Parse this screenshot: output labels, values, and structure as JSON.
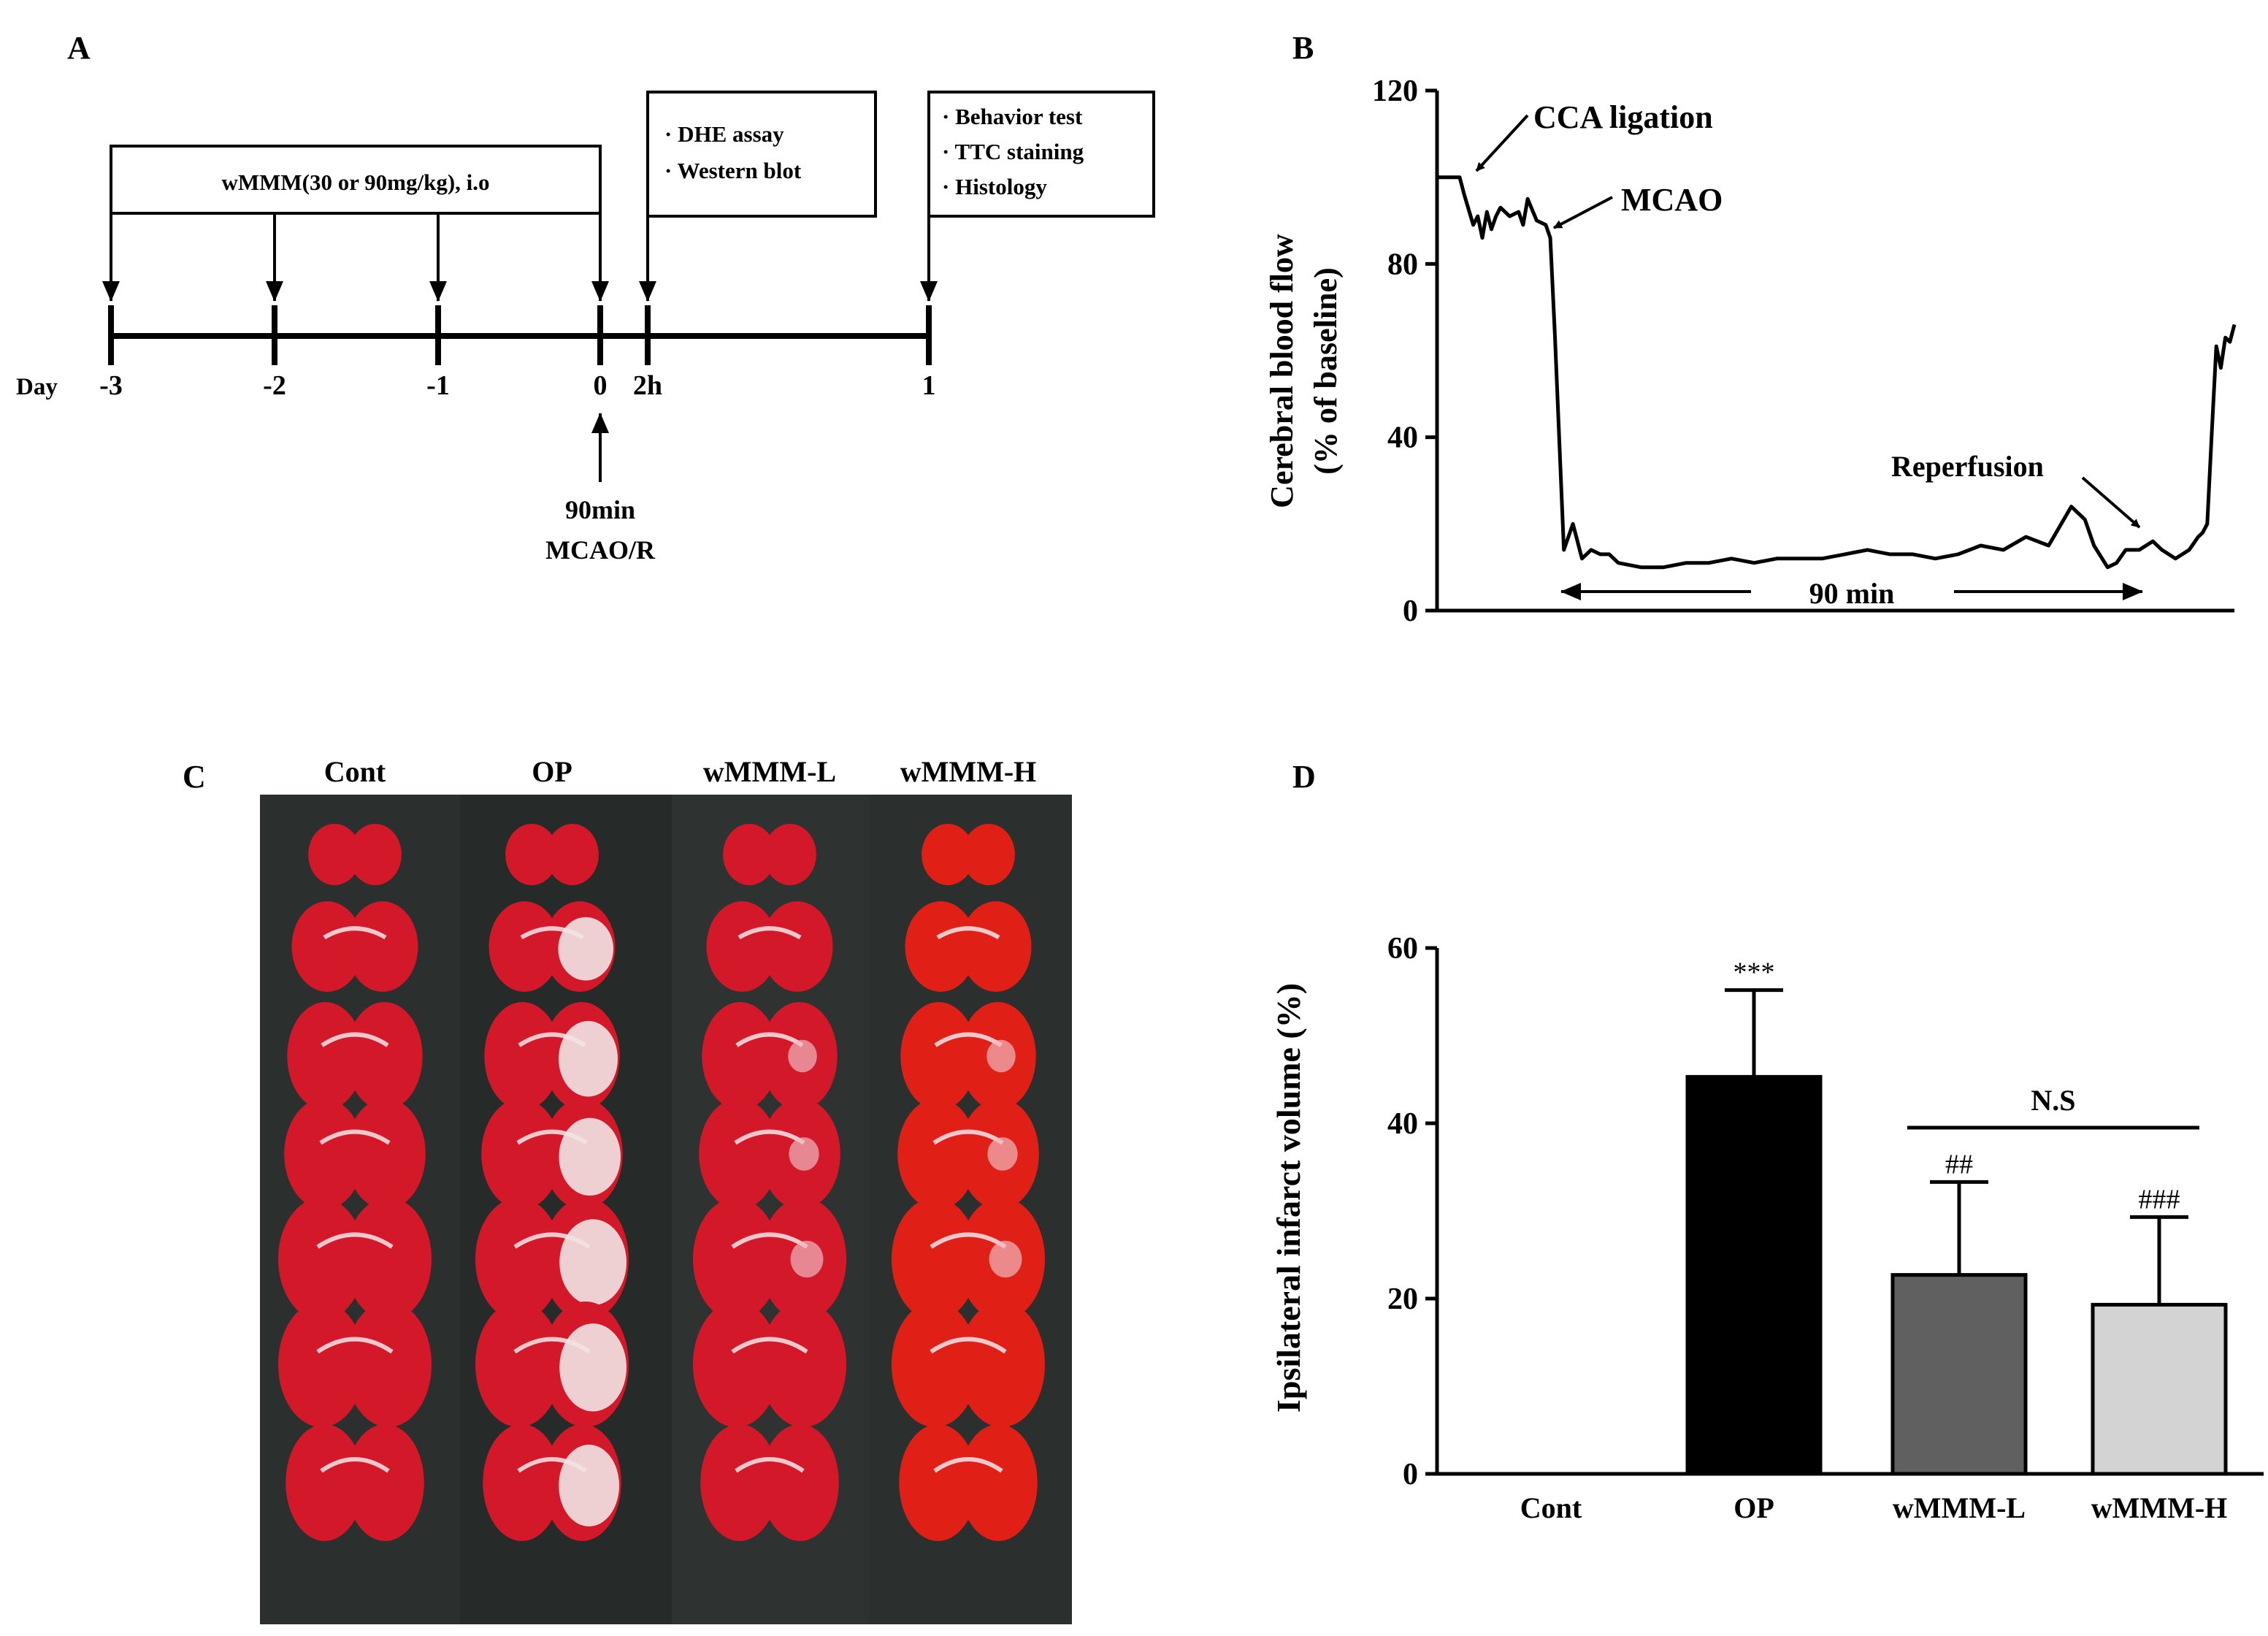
{
  "panels": {
    "A": {
      "label": "A",
      "treatment_box": "wMMM(30 or 90mg/kg), i.o",
      "assay_box": [
        "· DHE assay",
        "· Western blot"
      ],
      "outcome_box": [
        "· Behavior test",
        "· TTC staining",
        "· Histology"
      ],
      "day_label": "Day",
      "ticks": [
        "-3",
        "-2",
        "-1",
        "0",
        "2h",
        "1"
      ],
      "occlusion": [
        "90min",
        "MCAO/R"
      ]
    },
    "B": {
      "label": "B",
      "annotations": {
        "cca": "CCA ligation",
        "mcao": "MCAO",
        "reperfusion": "Reperfusion",
        "duration": "90 min"
      }
    },
    "C": {
      "label": "C",
      "group_labels": [
        "Cont",
        "OP",
        "wMMM-L",
        "wMMM-H"
      ]
    },
    "D": {
      "label": "D",
      "significance": {
        "op": "***",
        "low": "##",
        "high": "###",
        "ns": "N.S"
      }
    }
  },
  "colors": {
    "ink": "#000000",
    "photo_background": "#2b2f2d",
    "tissue_red": "#d3182a",
    "bar_op": "#000000",
    "bar_low": "#606060",
    "bar_high": "#d3d3d3"
  },
  "chart_data": [
    {
      "type": "line",
      "panel": "B",
      "title": "",
      "xlabel": "",
      "ylabel": "Cerebral blood flow\n(% of baseline)",
      "ylim": [
        0,
        120
      ],
      "yticks": [
        0,
        40,
        80,
        120
      ],
      "xlim": [
        0,
        176
      ],
      "x_units": "min",
      "grid": false,
      "series": [
        {
          "name": "CBF",
          "x": [
            0,
            5,
            6,
            8,
            9,
            10,
            11,
            12,
            13,
            14,
            16,
            18,
            19,
            20,
            22,
            24,
            25,
            26,
            28,
            30,
            32,
            34,
            36,
            38,
            40,
            45,
            50,
            55,
            60,
            65,
            70,
            75,
            80,
            85,
            90,
            95,
            100,
            105,
            110,
            115,
            120,
            125,
            130,
            135,
            140,
            143,
            145,
            148,
            150,
            152,
            155,
            158,
            160,
            163,
            166,
            168,
            169,
            170,
            171,
            172,
            173,
            174,
            175,
            176
          ],
          "values": [
            100,
            100,
            96,
            89,
            91,
            86,
            92,
            88,
            91,
            93,
            91,
            92,
            89,
            95,
            90,
            89,
            86,
            64,
            14,
            20,
            12,
            14,
            13,
            13,
            11,
            10,
            10,
            11,
            11,
            12,
            11,
            12,
            12,
            12,
            13,
            14,
            13,
            13,
            12,
            13,
            15,
            14,
            17,
            15,
            24,
            21,
            15,
            10,
            11,
            14,
            14,
            16,
            14,
            12,
            14,
            17,
            18,
            20,
            41,
            61,
            56,
            63,
            62,
            66
          ]
        }
      ]
    },
    {
      "type": "bar",
      "panel": "D",
      "title": "",
      "xlabel": "",
      "ylabel": "Ipsilateral infarct volume (%)",
      "ylim": [
        0,
        60
      ],
      "yticks": [
        0,
        20,
        40,
        60
      ],
      "categories": [
        "Cont",
        "OP",
        "wMMM-L",
        "wMMM-H"
      ],
      "values": [
        0,
        45.3,
        22.7,
        19.3
      ],
      "errors": [
        0,
        9.9,
        10.6,
        10.0
      ],
      "grid": false
    }
  ]
}
